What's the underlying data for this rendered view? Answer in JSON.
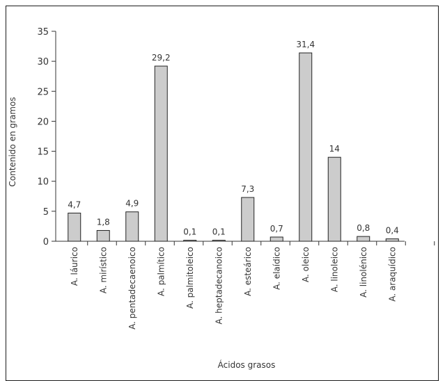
{
  "chart_data": {
    "type": "bar",
    "xlabel": "Ácidos grasos",
    "ylabel": "Contenido en gramos",
    "ylim": [
      0,
      35
    ],
    "yticks": [
      0,
      5,
      10,
      15,
      20,
      25,
      30,
      35
    ],
    "grid": false,
    "categories": [
      "A. láurico",
      "A. mirístico",
      "A. pentadecaenoico",
      "A. palmítico",
      "A. palmitoleico",
      "A. heptadecanoico",
      "A. esteárico",
      "A. elaídico",
      "A. oleico",
      "A. linoleico",
      "A. linolénico",
      "A. araquídico"
    ],
    "values": [
      4.7,
      1.8,
      4.9,
      29.2,
      0.1,
      0.1,
      7.3,
      0.7,
      31.4,
      14,
      0.8,
      0.4
    ],
    "data_labels": [
      "4,7",
      "1,8",
      "4,9",
      "29,2",
      "0,1",
      "0,1",
      "7,3",
      "0,7",
      "31,4",
      "14",
      "0,8",
      "0,4"
    ],
    "bar_color": "#cccccc",
    "bar_edge_color": "#222222"
  }
}
